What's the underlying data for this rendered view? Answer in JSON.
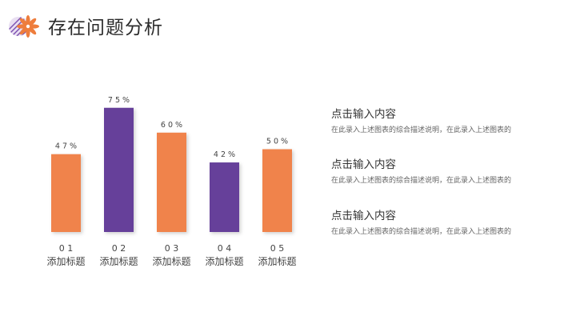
{
  "page": {
    "title": "存在问题分析"
  },
  "colors": {
    "orange": "#f0834b",
    "purple": "#66409a",
    "logo_orange": "#ee7d3c"
  },
  "chart_data": {
    "type": "bar",
    "categories": [
      "0 1",
      "0 2",
      "0 3",
      "0 4",
      "0 5"
    ],
    "category_names": [
      "添加标题",
      "添加标题",
      "添加标题",
      "添加标题",
      "添加标题"
    ],
    "values": [
      47,
      75,
      60,
      42,
      50
    ],
    "data_labels": [
      "4 7 %",
      "7 5 %",
      "6 0 %",
      "4 2 %",
      "5 0 %"
    ],
    "bar_colors": [
      "orange",
      "purple",
      "orange",
      "purple",
      "orange"
    ],
    "title": "",
    "xlabel": "",
    "ylabel": "",
    "ylim": [
      0,
      100
    ],
    "grid": false,
    "legend": "none"
  },
  "descriptions": [
    {
      "title": "点击输入内容",
      "text": "在此录入上述图表的综合描述说明，在此录入上述图表的"
    },
    {
      "title": "点击输入内容",
      "text": "在此录入上述图表的综合描述说明，在此录入上述图表的"
    },
    {
      "title": "点击输入内容",
      "text": "在此录入上述图表的综合描述说明，在此录入上述图表的"
    }
  ]
}
